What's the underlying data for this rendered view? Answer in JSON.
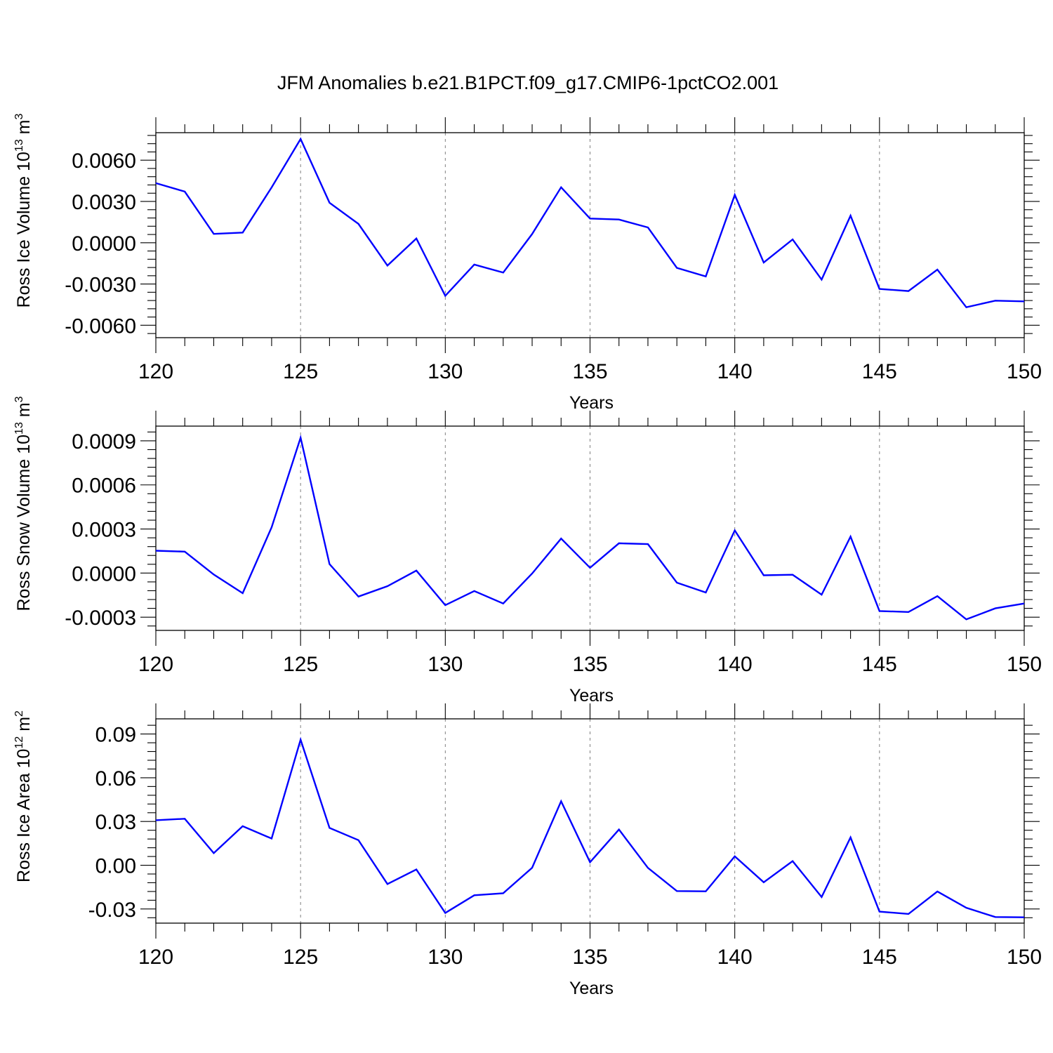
{
  "figure": {
    "title": "JFM Anomalies b.e21.B1PCT.f09_g17.CMIP6-1pctCO2.001",
    "line_color": "#0000ff"
  },
  "chart_data": [
    {
      "type": "line",
      "title": "JFM Anomalies b.e21.B1PCT.f09_g17.CMIP6-1pctCO2.001",
      "ylabel": {
        "prefix": "Ross Ice Volume 10",
        "exp": "13",
        "unit": " m",
        "unit_exp": "3"
      },
      "xlabel": "Years",
      "xlim": [
        120,
        150
      ],
      "ylim": [
        -0.0069,
        0.008
      ],
      "xticks": [
        120,
        125,
        130,
        135,
        140,
        145,
        150
      ],
      "xtick_labels": [
        "120",
        "125",
        "130",
        "135",
        "140",
        "145",
        "150"
      ],
      "yticks": [
        0.006,
        0.003,
        0.0,
        -0.003,
        -0.006
      ],
      "ytick_labels": [
        "0.0060",
        "0.0030",
        "0.0000",
        "-0.0030",
        "-0.0060"
      ],
      "ymajor_step": 0.003,
      "grid": "x-major dashed",
      "series": [
        {
          "name": "Ross Ice Volume",
          "x": [
            120,
            121,
            122,
            123,
            124,
            125,
            126,
            127,
            128,
            129,
            130,
            131,
            132,
            133,
            134,
            135,
            136,
            137,
            138,
            139,
            140,
            141,
            142,
            143,
            144,
            145,
            146,
            147,
            148,
            149,
            150
          ],
          "values": [
            0.00433,
            0.00372,
            0.00064,
            0.00074,
            0.00402,
            0.00754,
            0.00291,
            0.00137,
            -0.00166,
            0.00031,
            -0.00386,
            -0.00159,
            -0.00217,
            0.00063,
            0.00403,
            0.00176,
            0.00169,
            0.00111,
            -0.00183,
            -0.00245,
            0.00348,
            -0.00144,
            0.00024,
            -0.00268,
            0.00197,
            -0.00336,
            -0.00351,
            -0.00195,
            -0.00469,
            -0.00421,
            -0.00426
          ]
        }
      ]
    },
    {
      "type": "line",
      "ylabel": {
        "prefix": "Ross Snow Volume 10",
        "exp": "13",
        "unit": " m",
        "unit_exp": "3"
      },
      "xlabel": "Years",
      "xlim": [
        120,
        150
      ],
      "ylim": [
        -0.00039,
        0.001
      ],
      "xticks": [
        120,
        125,
        130,
        135,
        140,
        145,
        150
      ],
      "xtick_labels": [
        "120",
        "125",
        "130",
        "135",
        "140",
        "145",
        "150"
      ],
      "yticks": [
        0.0009,
        0.0006,
        0.0003,
        0.0,
        -0.0003
      ],
      "ytick_labels": [
        "0.0009",
        "0.0006",
        "0.0003",
        "0.0000",
        "-0.0003"
      ],
      "ymajor_step": 0.0003,
      "grid": "x-major dashed",
      "series": [
        {
          "name": "Ross Snow Volume",
          "x": [
            120,
            121,
            122,
            123,
            124,
            125,
            126,
            127,
            128,
            129,
            130,
            131,
            132,
            133,
            134,
            135,
            136,
            137,
            138,
            139,
            140,
            141,
            142,
            143,
            144,
            145,
            146,
            147,
            148,
            149,
            150
          ],
          "values": [
            0.000152,
            0.000146,
            -1e-05,
            -0.000137,
            0.000311,
            0.000921,
            6.1e-05,
            -0.00016,
            -8.9e-05,
            1.7e-05,
            -0.000218,
            -0.000122,
            -0.000207,
            -3e-06,
            0.000235,
            3.6e-05,
            0.000203,
            0.000197,
            -6.5e-05,
            -0.000132,
            0.00029,
            -1.5e-05,
            -1.1e-05,
            -0.000147,
            0.000248,
            -0.000258,
            -0.000265,
            -0.000157,
            -0.000315,
            -0.00024,
            -0.000207
          ]
        }
      ]
    },
    {
      "type": "line",
      "ylabel": {
        "prefix": "Ross Ice Area 10",
        "exp": "12",
        "unit": " m",
        "unit_exp": "2"
      },
      "xlabel": "Years",
      "xlim": [
        120,
        150
      ],
      "ylim": [
        -0.0397,
        0.1004
      ],
      "xticks": [
        120,
        125,
        130,
        135,
        140,
        145,
        150
      ],
      "xtick_labels": [
        "120",
        "125",
        "130",
        "135",
        "140",
        "145",
        "150"
      ],
      "yticks": [
        0.09,
        0.06,
        0.03,
        0.0,
        -0.03
      ],
      "ytick_labels": [
        "0.09",
        "0.06",
        "0.03",
        "0.00",
        "-0.03"
      ],
      "ymajor_step": 0.03,
      "grid": "x-major dashed",
      "series": [
        {
          "name": "Ross Ice Area",
          "x": [
            120,
            121,
            122,
            123,
            124,
            125,
            126,
            127,
            128,
            129,
            130,
            131,
            132,
            133,
            134,
            135,
            136,
            137,
            138,
            139,
            140,
            141,
            142,
            143,
            144,
            145,
            146,
            147,
            148,
            149,
            150
          ],
          "values": [
            0.0309,
            0.0319,
            0.0083,
            0.0268,
            0.0183,
            0.0861,
            0.0256,
            0.0172,
            -0.0129,
            -0.0029,
            -0.0327,
            -0.0206,
            -0.0192,
            -0.0017,
            0.0439,
            0.0021,
            0.0245,
            -0.0018,
            -0.0177,
            -0.0179,
            0.0061,
            -0.0117,
            0.0028,
            -0.0218,
            0.0191,
            -0.0318,
            -0.0334,
            -0.018,
            -0.0292,
            -0.0355,
            -0.0357
          ]
        }
      ]
    }
  ]
}
